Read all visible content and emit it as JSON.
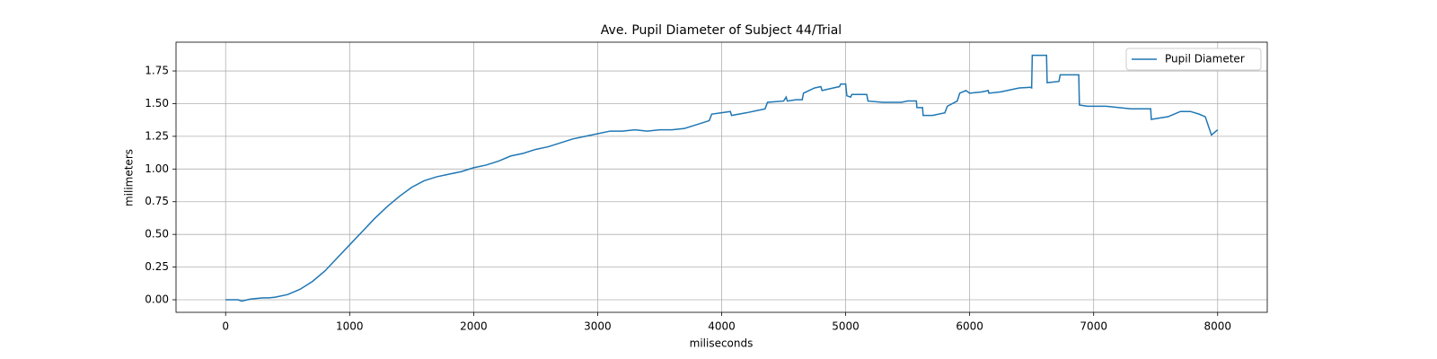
{
  "chart_data": {
    "type": "line",
    "title": "Ave. Pupil Diameter of Subject 44/Trial",
    "x_label": "miliseconds",
    "y_label": "milimeters",
    "x": [
      0,
      100,
      130,
      200,
      300,
      350,
      400,
      500,
      600,
      700,
      800,
      900,
      1000,
      1100,
      1200,
      1300,
      1400,
      1500,
      1600,
      1700,
      1800,
      1900,
      2000,
      2100,
      2200,
      2300,
      2400,
      2500,
      2600,
      2700,
      2800,
      2900,
      3000,
      3100,
      3200,
      3300,
      3400,
      3500,
      3600,
      3700,
      3800,
      3900,
      3920,
      4000,
      4070,
      4080,
      4200,
      4300,
      4350,
      4370,
      4500,
      4520,
      4530,
      4600,
      4650,
      4660,
      4750,
      4800,
      4810,
      4900,
      4950,
      4960,
      5000,
      5010,
      5040,
      5050,
      5170,
      5180,
      5300,
      5450,
      5500,
      5570,
      5575,
      5620,
      5625,
      5700,
      5800,
      5820,
      5900,
      5920,
      5970,
      6000,
      6100,
      6150,
      6155,
      6250,
      6400,
      6490,
      6500,
      6505,
      6600,
      6620,
      6625,
      6720,
      6730,
      6880,
      6885,
      6950,
      7100,
      7300,
      7380,
      7460,
      7465,
      7600,
      7700,
      7780,
      7850,
      7900,
      7950,
      8000
    ],
    "series": [
      {
        "name": "Pupil Diameter",
        "color": "#1f77b4",
        "values": [
          0,
          0,
          -0.01,
          0.005,
          0.015,
          0.015,
          0.02,
          0.04,
          0.08,
          0.14,
          0.22,
          0.32,
          0.42,
          0.52,
          0.62,
          0.71,
          0.79,
          0.86,
          0.91,
          0.94,
          0.96,
          0.98,
          1.01,
          1.03,
          1.06,
          1.1,
          1.12,
          1.15,
          1.17,
          1.2,
          1.23,
          1.25,
          1.27,
          1.29,
          1.29,
          1.3,
          1.29,
          1.3,
          1.3,
          1.31,
          1.34,
          1.37,
          1.42,
          1.43,
          1.44,
          1.41,
          1.43,
          1.45,
          1.46,
          1.51,
          1.52,
          1.55,
          1.52,
          1.53,
          1.53,
          1.58,
          1.62,
          1.63,
          1.6,
          1.62,
          1.63,
          1.65,
          1.65,
          1.56,
          1.55,
          1.57,
          1.57,
          1.52,
          1.51,
          1.51,
          1.52,
          1.52,
          1.47,
          1.47,
          1.41,
          1.41,
          1.43,
          1.48,
          1.52,
          1.58,
          1.6,
          1.58,
          1.59,
          1.6,
          1.58,
          1.59,
          1.62,
          1.625,
          1.62,
          1.87,
          1.87,
          1.87,
          1.66,
          1.67,
          1.72,
          1.72,
          1.49,
          1.48,
          1.48,
          1.46,
          1.46,
          1.46,
          1.38,
          1.4,
          1.44,
          1.44,
          1.42,
          1.4,
          1.26,
          1.3
        ]
      }
    ],
    "xlim": [
      -400,
      8400
    ],
    "ylim": [
      -0.096,
      1.97
    ],
    "xticks": [
      0,
      1000,
      2000,
      3000,
      4000,
      5000,
      6000,
      7000,
      8000
    ],
    "yticks": [
      {
        "value": 0,
        "label": "0.00"
      },
      {
        "value": 0.25,
        "label": "0.25"
      },
      {
        "value": 0.5,
        "label": "0.50"
      },
      {
        "value": 0.75,
        "label": "0.75"
      },
      {
        "value": 1,
        "label": "1.00"
      },
      {
        "value": 1.25,
        "label": "1.25"
      },
      {
        "value": 1.5,
        "label": "1.50"
      },
      {
        "value": 1.75,
        "label": "1.75"
      }
    ],
    "grid": true,
    "legend": "upper right"
  }
}
